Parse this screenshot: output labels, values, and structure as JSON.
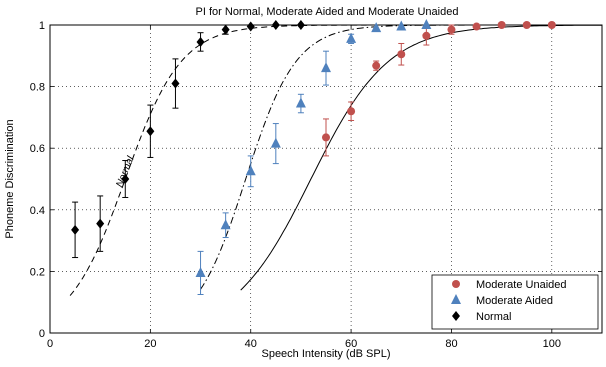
{
  "chart_data": {
    "type": "scatter",
    "title": "PI for Normal, Moderate Aided and Moderate Unaided",
    "xlabel": "Speech Intensity (dB SPL)",
    "ylabel": "Phoneme Discrimination",
    "xlim": [
      0,
      110
    ],
    "ylim": [
      0,
      1
    ],
    "x_ticks": [
      0,
      20,
      40,
      60,
      80,
      100
    ],
    "y_ticks": [
      0,
      0.2,
      0.4,
      0.6,
      0.8,
      1
    ],
    "x_tick_labels": [
      "0",
      "20",
      "40",
      "60",
      "80",
      "100"
    ],
    "y_tick_labels": [
      "0",
      "0.2",
      "0.4",
      "0.6",
      "0.8",
      "1"
    ],
    "grid": true,
    "legend_position": "bottom-right",
    "annotations": [
      {
        "text": "Normal",
        "x": 15.5,
        "y": 0.52
      }
    ],
    "series": [
      {
        "name": "Moderate Unaided",
        "marker": "circle",
        "color": "#c0504d",
        "points": [
          {
            "x": 55,
            "y": 0.635,
            "err": 0.06
          },
          {
            "x": 60,
            "y": 0.72,
            "err": 0.03
          },
          {
            "x": 65,
            "y": 0.868,
            "err": 0.015
          },
          {
            "x": 70,
            "y": 0.905,
            "err": 0.035
          },
          {
            "x": 75,
            "y": 0.965,
            "err": 0.03
          },
          {
            "x": 80,
            "y": 0.985,
            "err": 0.015
          },
          {
            "x": 85,
            "y": 0.995,
            "err": 0.0
          },
          {
            "x": 90,
            "y": 1.0,
            "err": 0.0
          },
          {
            "x": 95,
            "y": 1.0,
            "err": 0.0
          },
          {
            "x": 100,
            "y": 1.0,
            "err": 0.0
          }
        ]
      },
      {
        "name": "Moderate Aided",
        "marker": "triangle",
        "color": "#4f81bd",
        "points": [
          {
            "x": 30,
            "y": 0.195,
            "err": 0.07
          },
          {
            "x": 35,
            "y": 0.35,
            "err": 0.04
          },
          {
            "x": 40,
            "y": 0.525,
            "err": 0.05
          },
          {
            "x": 45,
            "y": 0.615,
            "err": 0.065
          },
          {
            "x": 50,
            "y": 0.745,
            "err": 0.03
          },
          {
            "x": 55,
            "y": 0.86,
            "err": 0.055
          },
          {
            "x": 60,
            "y": 0.955,
            "err": 0.015
          },
          {
            "x": 65,
            "y": 0.99,
            "err": 0.0
          },
          {
            "x": 70,
            "y": 0.995,
            "err": 0.0
          },
          {
            "x": 75,
            "y": 1.0,
            "err": 0.0
          }
        ]
      },
      {
        "name": "Normal",
        "marker": "diamond",
        "color": "#000000",
        "points": [
          {
            "x": 5,
            "y": 0.335,
            "err": 0.09
          },
          {
            "x": 10,
            "y": 0.355,
            "err": 0.09
          },
          {
            "x": 15,
            "y": 0.5,
            "err": 0.06
          },
          {
            "x": 20,
            "y": 0.655,
            "err": 0.085
          },
          {
            "x": 25,
            "y": 0.81,
            "err": 0.08
          },
          {
            "x": 30,
            "y": 0.945,
            "err": 0.03
          },
          {
            "x": 35,
            "y": 0.985,
            "err": 0.015
          },
          {
            "x": 40,
            "y": 0.995,
            "err": 0.0
          },
          {
            "x": 45,
            "y": 1.0,
            "err": 0.0
          },
          {
            "x": 50,
            "y": 1.0,
            "err": 0.0
          }
        ]
      }
    ],
    "curves": [
      {
        "style": "dashed",
        "color": "#000000",
        "x0": 15,
        "slope": 0.18,
        "xstart": 4
      },
      {
        "style": "dashdot",
        "color": "#000000",
        "x0": 39,
        "slope": 0.2,
        "xstart": 30
      },
      {
        "style": "solid",
        "color": "#000000",
        "x0": 52,
        "slope": 0.13,
        "xstart": 38
      }
    ]
  }
}
